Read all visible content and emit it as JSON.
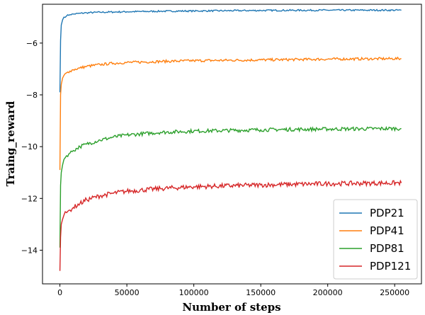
{
  "chart_data": {
    "type": "line",
    "xlabel": "Number of steps",
    "ylabel": "Traing_reward",
    "xlim": [
      -13000,
      270000
    ],
    "ylim": [
      -15.3,
      -4.5
    ],
    "xticks": [
      0,
      50000,
      100000,
      150000,
      200000,
      250000
    ],
    "yticks": [
      -14,
      -12,
      -10,
      -8,
      -6
    ],
    "legend_position": "lower-right",
    "grid": false,
    "series": [
      {
        "name": "PDP21",
        "color": "#1f77b4",
        "x": [
          0,
          500,
          1000,
          2000,
          3000,
          5000,
          7500,
          10000,
          15000,
          20000,
          30000,
          40000,
          50000,
          75000,
          100000,
          150000,
          200000,
          255000
        ],
        "y": [
          -7.9,
          -5.9,
          -5.3,
          -5.1,
          -5.0,
          -4.95,
          -4.9,
          -4.88,
          -4.85,
          -4.83,
          -4.81,
          -4.8,
          -4.79,
          -4.77,
          -4.76,
          -4.74,
          -4.73,
          -4.73
        ]
      },
      {
        "name": "PDP41",
        "color": "#ff7f0e",
        "x": [
          0,
          500,
          1000,
          2000,
          3000,
          5000,
          7500,
          10000,
          15000,
          20000,
          30000,
          40000,
          50000,
          75000,
          100000,
          150000,
          200000,
          255000
        ],
        "y": [
          -10.9,
          -8.0,
          -7.6,
          -7.35,
          -7.25,
          -7.15,
          -7.08,
          -7.03,
          -6.96,
          -6.9,
          -6.83,
          -6.78,
          -6.75,
          -6.71,
          -6.68,
          -6.65,
          -6.62,
          -6.6
        ]
      },
      {
        "name": "PDP81",
        "color": "#2ca02c",
        "x": [
          0,
          500,
          1000,
          2000,
          3000,
          5000,
          7500,
          10000,
          15000,
          20000,
          30000,
          40000,
          50000,
          75000,
          100000,
          150000,
          200000,
          255000
        ],
        "y": [
          -13.9,
          -11.5,
          -11.0,
          -10.7,
          -10.5,
          -10.35,
          -10.25,
          -10.15,
          -10.0,
          -9.9,
          -9.75,
          -9.63,
          -9.55,
          -9.45,
          -9.4,
          -9.35,
          -9.32,
          -9.3
        ]
      },
      {
        "name": "PDP121",
        "color": "#d62728",
        "x": [
          0,
          500,
          1000,
          2000,
          3000,
          5000,
          7500,
          10000,
          15000,
          20000,
          30000,
          40000,
          50000,
          75000,
          100000,
          150000,
          200000,
          255000
        ],
        "y": [
          -14.8,
          -13.5,
          -13.0,
          -12.8,
          -12.65,
          -12.55,
          -12.45,
          -12.35,
          -12.2,
          -12.05,
          -11.9,
          -11.8,
          -11.72,
          -11.62,
          -11.55,
          -11.48,
          -11.43,
          -11.4
        ]
      }
    ]
  }
}
